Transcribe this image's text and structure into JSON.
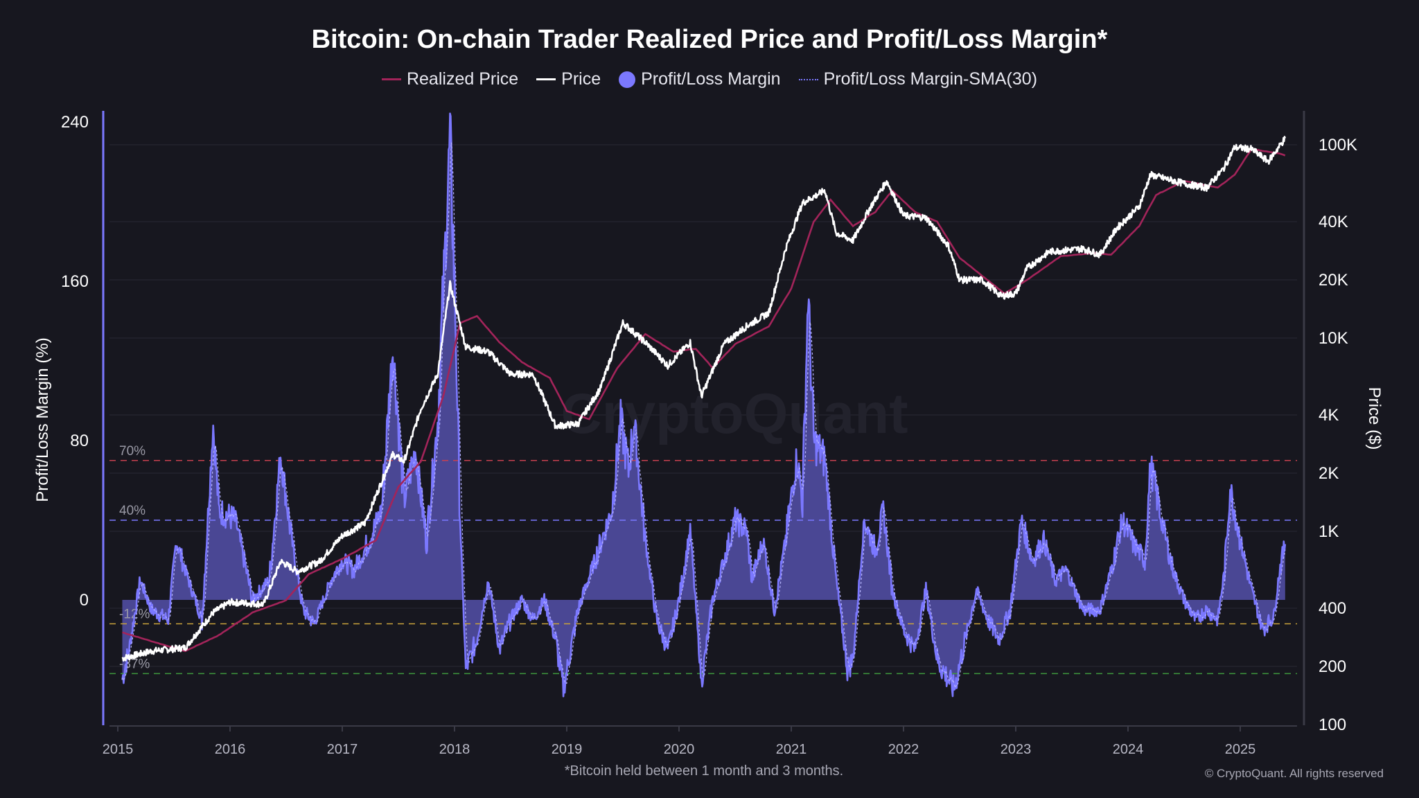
{
  "chart_data": {
    "type": "area+line",
    "title": "Bitcoin: On-chain Trader Realized Price and Profit/Loss Margin*",
    "footnote": "*Bitcoin held between 1 month and 3 months.",
    "copyright": "© CryptoQuant. All rights reserved",
    "watermark": "CryptoQuant",
    "legend": {
      "placement": "top-center",
      "items": [
        {
          "name": "Realized Price",
          "color": "#a3245a",
          "style": "line"
        },
        {
          "name": "Price",
          "color": "#ffffff",
          "style": "line"
        },
        {
          "name": "Profit/Loss Margin",
          "color": "#7b78ff",
          "style": "dot"
        },
        {
          "name": "Profit/Loss Margin-SMA(30)",
          "color": "#7b78ff",
          "style": "dotted"
        }
      ]
    },
    "ylabel_left": "Profit/Loss Margin (%)",
    "ylabel_right": "Price ($)",
    "y_left": {
      "range": [
        -63,
        240
      ],
      "ticks": [
        240,
        160,
        80,
        0
      ]
    },
    "y_right": {
      "scale": "log",
      "range": [
        100,
        100000
      ],
      "ticks": [
        {
          "v": 100000,
          "l": "100K"
        },
        {
          "v": 40000,
          "l": "40K"
        },
        {
          "v": 20000,
          "l": "20K"
        },
        {
          "v": 10000,
          "l": "10K"
        },
        {
          "v": 4000,
          "l": "4K"
        },
        {
          "v": 2000,
          "l": "2K"
        },
        {
          "v": 1000,
          "l": "1K"
        },
        {
          "v": 400,
          "l": "400"
        },
        {
          "v": 200,
          "l": "200"
        },
        {
          "v": 100,
          "l": "100"
        }
      ]
    },
    "x": {
      "range": [
        2014.9,
        2025.5
      ],
      "ticks": [
        "2015",
        "2016",
        "2017",
        "2018",
        "2019",
        "2020",
        "2021",
        "2022",
        "2023",
        "2024",
        "2025"
      ]
    },
    "grid": true,
    "reference_lines": [
      {
        "value": 70,
        "label": "70%",
        "color": "#c8404f"
      },
      {
        "value": 40,
        "label": "40%",
        "color": "#7b78ff"
      },
      {
        "value": -12,
        "label": "-12%",
        "color": "#c8a23a"
      },
      {
        "value": -37,
        "label": "-37%",
        "color": "#3f9a3f"
      }
    ],
    "series": [
      {
        "name": "Profit/Loss Margin",
        "axis": "left",
        "points": [
          [
            2015.04,
            -40
          ],
          [
            2015.1,
            -25
          ],
          [
            2015.2,
            10
          ],
          [
            2015.3,
            -5
          ],
          [
            2015.45,
            -10
          ],
          [
            2015.52,
            30
          ],
          [
            2015.6,
            15
          ],
          [
            2015.75,
            -10
          ],
          [
            2015.85,
            88
          ],
          [
            2015.9,
            45
          ],
          [
            2016.05,
            40
          ],
          [
            2016.2,
            0
          ],
          [
            2016.35,
            10
          ],
          [
            2016.45,
            73
          ],
          [
            2016.55,
            30
          ],
          [
            2016.65,
            -5
          ],
          [
            2016.75,
            -12
          ],
          [
            2016.9,
            10
          ],
          [
            2017.0,
            20
          ],
          [
            2017.1,
            15
          ],
          [
            2017.2,
            25
          ],
          [
            2017.35,
            45
          ],
          [
            2017.45,
            127
          ],
          [
            2017.55,
            50
          ],
          [
            2017.65,
            75
          ],
          [
            2017.75,
            30
          ],
          [
            2017.85,
            90
          ],
          [
            2017.96,
            232
          ],
          [
            2018.0,
            160
          ],
          [
            2018.05,
            40
          ],
          [
            2018.1,
            -35
          ],
          [
            2018.2,
            -20
          ],
          [
            2018.3,
            10
          ],
          [
            2018.4,
            -25
          ],
          [
            2018.5,
            -10
          ],
          [
            2018.6,
            0
          ],
          [
            2018.7,
            -10
          ],
          [
            2018.8,
            0
          ],
          [
            2018.9,
            -20
          ],
          [
            2018.97,
            -45
          ],
          [
            2019.1,
            -5
          ],
          [
            2019.25,
            20
          ],
          [
            2019.4,
            45
          ],
          [
            2019.48,
            90
          ],
          [
            2019.55,
            65
          ],
          [
            2019.6,
            90
          ],
          [
            2019.7,
            30
          ],
          [
            2019.8,
            -10
          ],
          [
            2019.9,
            -25
          ],
          [
            2020.0,
            0
          ],
          [
            2020.1,
            35
          ],
          [
            2020.2,
            -42
          ],
          [
            2020.3,
            0
          ],
          [
            2020.4,
            20
          ],
          [
            2020.5,
            40
          ],
          [
            2020.6,
            35
          ],
          [
            2020.65,
            10
          ],
          [
            2020.75,
            30
          ],
          [
            2020.85,
            -5
          ],
          [
            2020.95,
            30
          ],
          [
            2021.05,
            72
          ],
          [
            2021.1,
            50
          ],
          [
            2021.15,
            154
          ],
          [
            2021.2,
            80
          ],
          [
            2021.3,
            70
          ],
          [
            2021.4,
            10
          ],
          [
            2021.5,
            -35
          ],
          [
            2021.55,
            -30
          ],
          [
            2021.65,
            40
          ],
          [
            2021.75,
            25
          ],
          [
            2021.82,
            45
          ],
          [
            2021.9,
            5
          ],
          [
            2022.0,
            -15
          ],
          [
            2022.1,
            -25
          ],
          [
            2022.2,
            5
          ],
          [
            2022.3,
            -30
          ],
          [
            2022.45,
            -45
          ],
          [
            2022.55,
            -20
          ],
          [
            2022.65,
            5
          ],
          [
            2022.75,
            -10
          ],
          [
            2022.85,
            -20
          ],
          [
            2022.95,
            -5
          ],
          [
            2023.05,
            40
          ],
          [
            2023.15,
            20
          ],
          [
            2023.25,
            30
          ],
          [
            2023.35,
            10
          ],
          [
            2023.45,
            15
          ],
          [
            2023.6,
            -5
          ],
          [
            2023.75,
            -5
          ],
          [
            2023.85,
            15
          ],
          [
            2023.95,
            40
          ],
          [
            2024.05,
            28
          ],
          [
            2024.15,
            20
          ],
          [
            2024.2,
            68
          ],
          [
            2024.3,
            40
          ],
          [
            2024.4,
            15
          ],
          [
            2024.5,
            0
          ],
          [
            2024.6,
            -10
          ],
          [
            2024.7,
            -5
          ],
          [
            2024.8,
            -10
          ],
          [
            2024.86,
            15
          ],
          [
            2024.91,
            56
          ],
          [
            2025.0,
            30
          ],
          [
            2025.1,
            5
          ],
          [
            2025.2,
            -15
          ],
          [
            2025.3,
            -8
          ],
          [
            2025.35,
            15
          ],
          [
            2025.4,
            28
          ]
        ]
      },
      {
        "name": "Price",
        "axis": "right",
        "points": [
          [
            2015.04,
            220
          ],
          [
            2015.3,
            240
          ],
          [
            2015.6,
            250
          ],
          [
            2015.85,
            380
          ],
          [
            2016.0,
            430
          ],
          [
            2016.3,
            420
          ],
          [
            2016.45,
            700
          ],
          [
            2016.6,
            620
          ],
          [
            2016.8,
            700
          ],
          [
            2017.0,
            950
          ],
          [
            2017.2,
            1100
          ],
          [
            2017.45,
            2500
          ],
          [
            2017.55,
            2300
          ],
          [
            2017.7,
            4300
          ],
          [
            2017.85,
            6500
          ],
          [
            2017.96,
            19000
          ],
          [
            2018.1,
            9000
          ],
          [
            2018.3,
            8500
          ],
          [
            2018.5,
            6500
          ],
          [
            2018.7,
            6500
          ],
          [
            2018.9,
            3500
          ],
          [
            2019.1,
            3600
          ],
          [
            2019.3,
            5500
          ],
          [
            2019.5,
            12000
          ],
          [
            2019.7,
            9500
          ],
          [
            2019.9,
            7200
          ],
          [
            2020.1,
            9500
          ],
          [
            2020.2,
            5000
          ],
          [
            2020.4,
            9300
          ],
          [
            2020.6,
            11500
          ],
          [
            2020.8,
            13500
          ],
          [
            2020.95,
            29000
          ],
          [
            2021.1,
            50000
          ],
          [
            2021.3,
            58000
          ],
          [
            2021.4,
            35000
          ],
          [
            2021.55,
            32000
          ],
          [
            2021.7,
            47000
          ],
          [
            2021.85,
            65000
          ],
          [
            2022.0,
            43000
          ],
          [
            2022.2,
            42000
          ],
          [
            2022.4,
            30000
          ],
          [
            2022.5,
            20000
          ],
          [
            2022.7,
            20000
          ],
          [
            2022.87,
            16500
          ],
          [
            2023.0,
            17000
          ],
          [
            2023.1,
            23000
          ],
          [
            2023.3,
            28000
          ],
          [
            2023.6,
            29000
          ],
          [
            2023.75,
            27000
          ],
          [
            2023.9,
            37000
          ],
          [
            2024.1,
            48000
          ],
          [
            2024.2,
            70000
          ],
          [
            2024.5,
            63000
          ],
          [
            2024.7,
            60000
          ],
          [
            2024.85,
            75000
          ],
          [
            2024.95,
            97000
          ],
          [
            2025.1,
            95000
          ],
          [
            2025.25,
            82000
          ],
          [
            2025.4,
            108000
          ]
        ]
      },
      {
        "name": "Realized Price",
        "axis": "right",
        "points": [
          [
            2015.04,
            300
          ],
          [
            2015.3,
            270
          ],
          [
            2015.6,
            240
          ],
          [
            2015.9,
            290
          ],
          [
            2016.2,
            380
          ],
          [
            2016.5,
            440
          ],
          [
            2016.7,
            600
          ],
          [
            2017.0,
            720
          ],
          [
            2017.3,
            900
          ],
          [
            2017.5,
            1700
          ],
          [
            2017.7,
            2300
          ],
          [
            2017.9,
            5000
          ],
          [
            2018.05,
            12000
          ],
          [
            2018.2,
            13000
          ],
          [
            2018.4,
            9500
          ],
          [
            2018.6,
            7500
          ],
          [
            2018.85,
            6200
          ],
          [
            2019.0,
            4200
          ],
          [
            2019.2,
            3800
          ],
          [
            2019.45,
            7000
          ],
          [
            2019.7,
            10500
          ],
          [
            2019.95,
            8500
          ],
          [
            2020.15,
            8800
          ],
          [
            2020.3,
            7000
          ],
          [
            2020.5,
            9300
          ],
          [
            2020.8,
            11500
          ],
          [
            2021.0,
            18000
          ],
          [
            2021.2,
            40000
          ],
          [
            2021.35,
            52000
          ],
          [
            2021.55,
            38000
          ],
          [
            2021.75,
            45000
          ],
          [
            2021.9,
            58000
          ],
          [
            2022.1,
            45000
          ],
          [
            2022.3,
            40000
          ],
          [
            2022.5,
            26000
          ],
          [
            2022.7,
            21000
          ],
          [
            2022.9,
            17000
          ],
          [
            2023.1,
            20000
          ],
          [
            2023.4,
            26500
          ],
          [
            2023.7,
            27500
          ],
          [
            2023.85,
            27000
          ],
          [
            2024.1,
            38000
          ],
          [
            2024.25,
            55000
          ],
          [
            2024.5,
            65000
          ],
          [
            2024.8,
            60000
          ],
          [
            2024.95,
            70000
          ],
          [
            2025.1,
            95000
          ],
          [
            2025.35,
            90000
          ],
          [
            2025.4,
            88000
          ]
        ]
      }
    ]
  }
}
